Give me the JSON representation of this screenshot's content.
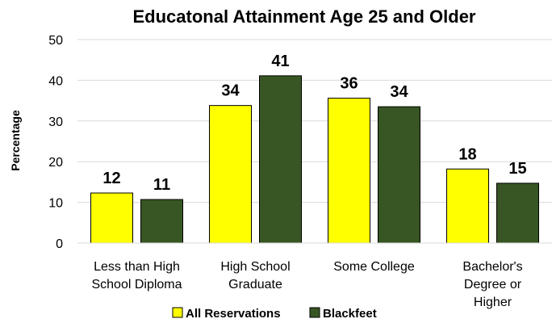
{
  "chart_data": {
    "type": "bar",
    "title": "Educatonal Attainment Age 25 and Older",
    "xlabel": "",
    "ylabel": "Percentage",
    "ylim": [
      0,
      50
    ],
    "yticks": [
      0,
      10,
      20,
      30,
      40,
      50
    ],
    "grid": true,
    "legend_position": "bottom",
    "categories": [
      [
        "Less than High",
        "School Diploma"
      ],
      [
        "High School",
        "Graduate"
      ],
      [
        "Some College"
      ],
      [
        "Bachelor's",
        "Degree or",
        "Higher"
      ]
    ],
    "series": [
      {
        "name": "All Reservations",
        "color": "#ffff00",
        "values": [
          12.3,
          33.8,
          35.6,
          18.2
        ],
        "labels": [
          "12",
          "34",
          "36",
          "18"
        ]
      },
      {
        "name": "Blackfeet",
        "color": "#375623",
        "values": [
          10.7,
          41.1,
          33.5,
          14.7
        ],
        "labels": [
          "11",
          "41",
          "34",
          "15"
        ]
      }
    ]
  }
}
